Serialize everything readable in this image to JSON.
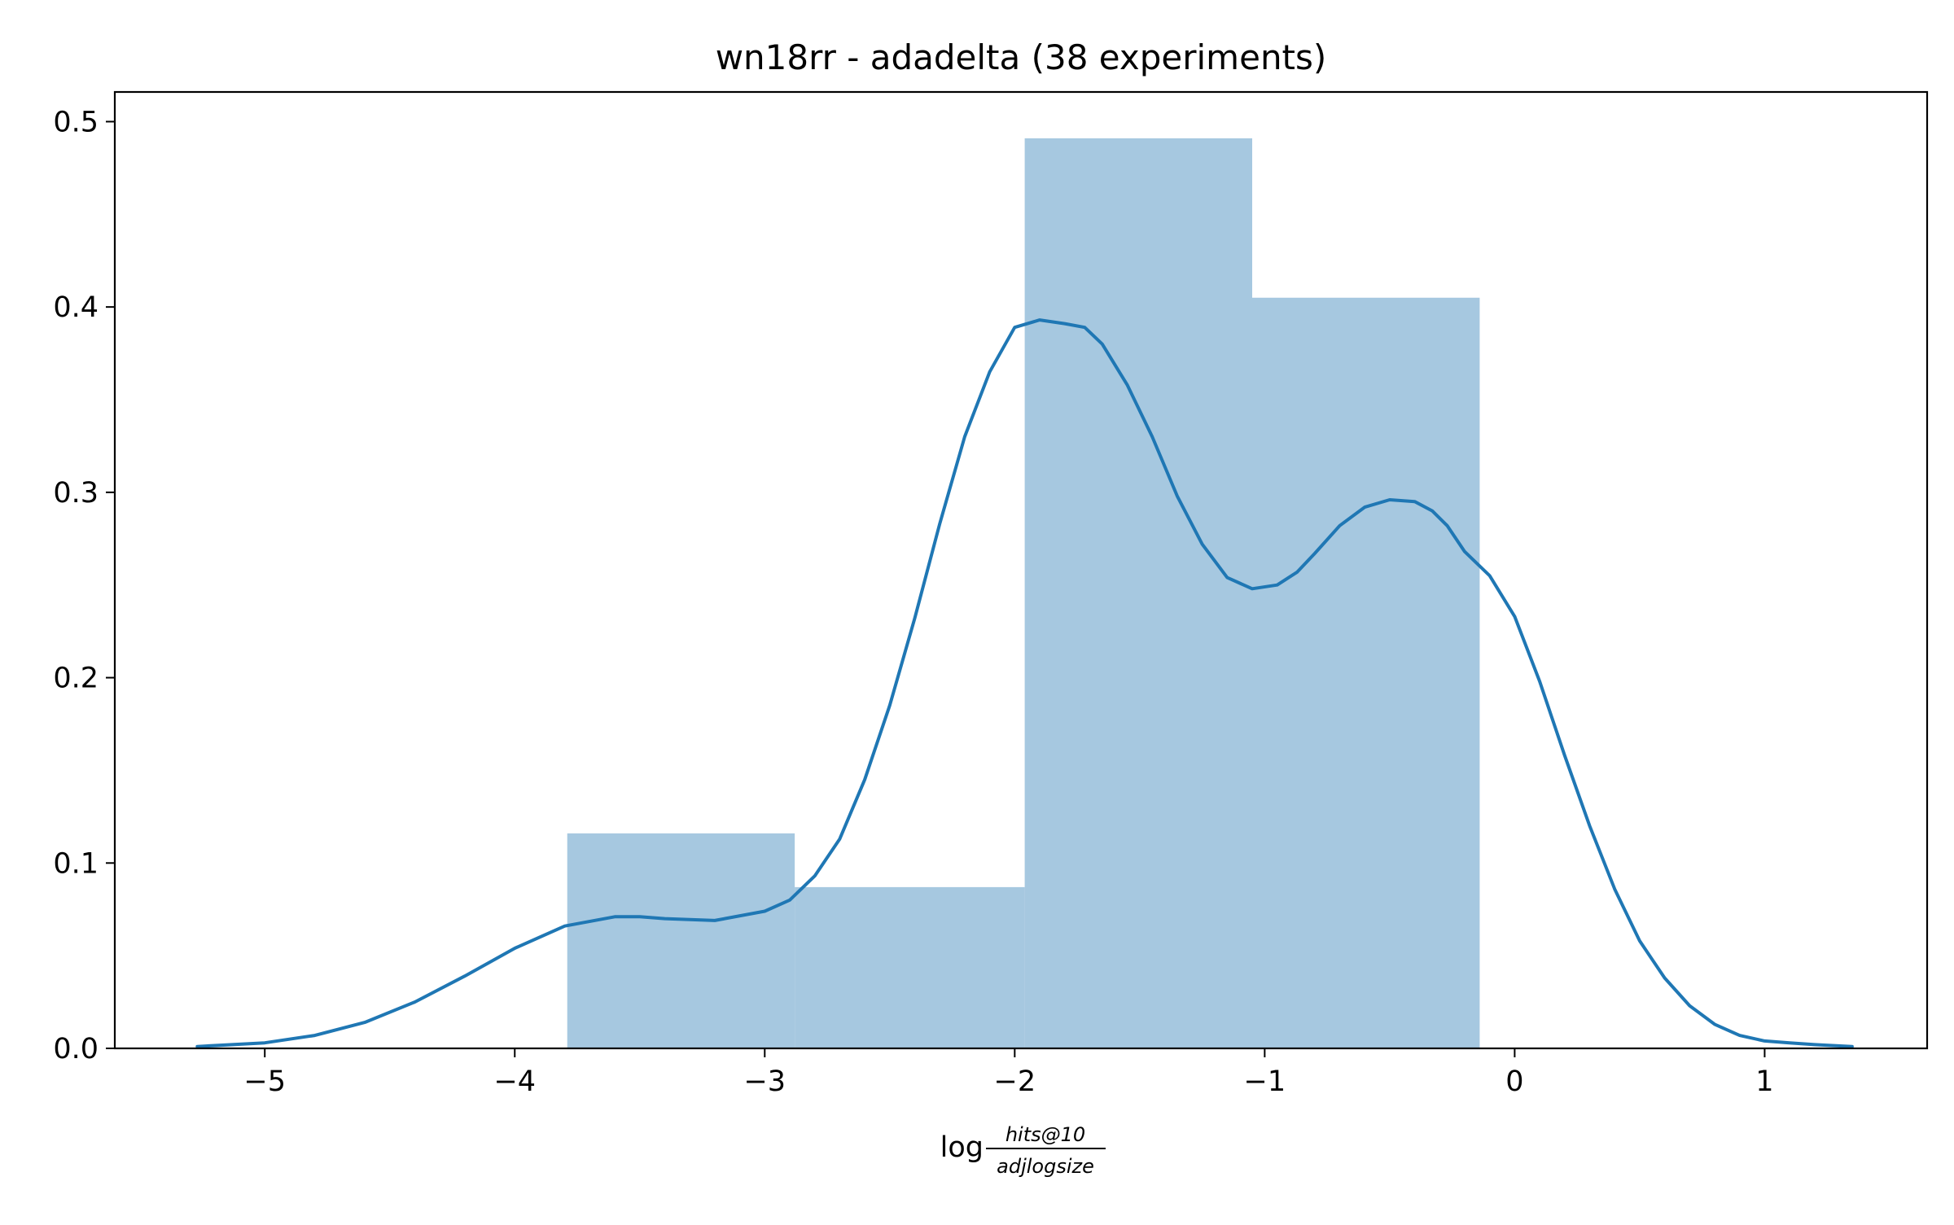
{
  "chart_data": {
    "type": "histogram_with_kde",
    "title": "wn18rr - adadelta (38 experiments)",
    "xlabel": {
      "prefix": "log",
      "numerator": "hits@10",
      "denominator": "adjlogsize"
    },
    "ylabel": "",
    "xlim": [
      -5.6,
      1.65
    ],
    "ylim": [
      0,
      0.516
    ],
    "xticks": [
      {
        "value": -5,
        "label": "−5"
      },
      {
        "value": -4,
        "label": "−4"
      },
      {
        "value": -3,
        "label": "−3"
      },
      {
        "value": -2,
        "label": "−2"
      },
      {
        "value": -1,
        "label": "−1"
      },
      {
        "value": 0,
        "label": "0"
      },
      {
        "value": 1,
        "label": "1"
      }
    ],
    "yticks": [
      {
        "value": 0,
        "label": "0.0"
      },
      {
        "value": 0.1,
        "label": "0.1"
      },
      {
        "value": 0.2,
        "label": "0.2"
      },
      {
        "value": 0.3,
        "label": "0.3"
      },
      {
        "value": 0.4,
        "label": "0.4"
      },
      {
        "value": 0.5,
        "label": "0.5"
      }
    ],
    "histogram": {
      "color": "#a6c8e0",
      "bins": [
        {
          "x0": -3.79,
          "x1": -2.88,
          "density": 0.116
        },
        {
          "x0": -2.88,
          "x1": -1.96,
          "density": 0.087
        },
        {
          "x0": -1.96,
          "x1": -1.05,
          "density": 0.491
        },
        {
          "x0": -1.05,
          "x1": -0.14,
          "density": 0.405
        }
      ]
    },
    "kde": {
      "color": "#1f77b4",
      "x": [
        -5.27,
        -5.0,
        -4.8,
        -4.6,
        -4.4,
        -4.2,
        -4.0,
        -3.8,
        -3.6,
        -3.5,
        -3.4,
        -3.2,
        -3.0,
        -2.9,
        -2.8,
        -2.7,
        -2.6,
        -2.5,
        -2.4,
        -2.3,
        -2.2,
        -2.1,
        -2.0,
        -1.9,
        -1.8,
        -1.72,
        -1.65,
        -1.55,
        -1.45,
        -1.35,
        -1.25,
        -1.15,
        -1.05,
        -0.95,
        -0.87,
        -0.8,
        -0.7,
        -0.6,
        -0.5,
        -0.4,
        -0.33,
        -0.27,
        -0.2,
        -0.1,
        0.0,
        0.1,
        0.2,
        0.3,
        0.4,
        0.5,
        0.6,
        0.7,
        0.8,
        0.9,
        1.0,
        1.1,
        1.2,
        1.35
      ],
      "y": [
        0.001,
        0.003,
        0.007,
        0.014,
        0.025,
        0.039,
        0.054,
        0.066,
        0.071,
        0.071,
        0.07,
        0.069,
        0.074,
        0.08,
        0.093,
        0.113,
        0.145,
        0.185,
        0.232,
        0.283,
        0.33,
        0.365,
        0.389,
        0.393,
        0.391,
        0.389,
        0.38,
        0.358,
        0.33,
        0.298,
        0.272,
        0.254,
        0.248,
        0.25,
        0.257,
        0.267,
        0.282,
        0.292,
        0.296,
        0.295,
        0.29,
        0.282,
        0.268,
        0.255,
        0.233,
        0.198,
        0.158,
        0.12,
        0.086,
        0.058,
        0.038,
        0.023,
        0.013,
        0.007,
        0.004,
        0.003,
        0.002,
        0.001
      ]
    },
    "grid": false,
    "legend": "none"
  }
}
